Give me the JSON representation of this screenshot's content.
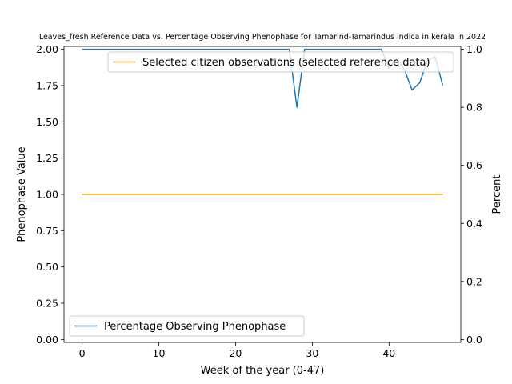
{
  "chart_data": {
    "type": "line",
    "title": "Leaves_fresh Reference Data vs. Percentage Observing Phenophase for Tamarind-Tamarindus indica in kerala in 2022",
    "xlabel": "Week of the year (0-47)",
    "ylabel_left": "Phenophase Value",
    "ylabel_right": "Percent",
    "xlim": [
      -2.35,
      49.35
    ],
    "ylim_left": [
      -0.02,
      2.02
    ],
    "ylim_right": [
      -0.01,
      1.01
    ],
    "x_ticks": [
      0,
      10,
      20,
      30,
      40
    ],
    "x_tick_labels": [
      "0",
      "10",
      "20",
      "30",
      "40"
    ],
    "y_ticks_left": [
      0.0,
      0.25,
      0.5,
      0.75,
      1.0,
      1.25,
      1.5,
      1.75,
      2.0
    ],
    "y_tick_labels_left": [
      "0.00",
      "0.25",
      "0.50",
      "0.75",
      "1.00",
      "1.25",
      "1.50",
      "1.75",
      "2.00"
    ],
    "y_ticks_right": [
      0.0,
      0.2,
      0.4,
      0.6,
      0.8,
      1.0
    ],
    "y_tick_labels_right": [
      "0.0",
      "0.2",
      "0.4",
      "0.6",
      "0.8",
      "1.0"
    ],
    "grid": false,
    "series": [
      {
        "name": "Selected citizen observations (selected reference data)",
        "axis": "left",
        "color": "#ffa500",
        "x": [
          0,
          47
        ],
        "y": [
          1.0,
          1.0
        ],
        "legend_position": "upper-right"
      },
      {
        "name": "Percentage Observing Phenophase",
        "axis": "left",
        "color": "#1f77b4",
        "x": [
          0,
          27,
          28,
          29,
          39,
          40,
          41,
          42,
          43,
          44,
          45,
          46,
          47
        ],
        "y": [
          2.0,
          2.0,
          1.6,
          2.0,
          2.0,
          1.87,
          1.94,
          1.86,
          1.72,
          1.77,
          1.92,
          1.95,
          1.75
        ],
        "legend_position": "lower-left"
      }
    ]
  }
}
